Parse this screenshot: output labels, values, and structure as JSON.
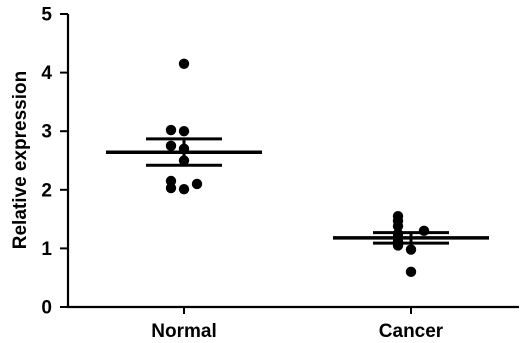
{
  "chart_data": {
    "type": "scatter",
    "ylabel": "Relative expression",
    "xlabel": "",
    "ylim": [
      0,
      5
    ],
    "yticks": [
      "0",
      "1",
      "2",
      "3",
      "4",
      "5"
    ],
    "categories": [
      "Normal",
      "Cancer"
    ],
    "groups": [
      {
        "category": "Normal",
        "values": [
          4.15,
          3.02,
          3.0,
          2.75,
          2.7,
          2.5,
          2.15,
          2.1,
          2.03,
          2.01
        ],
        "mean": 2.64,
        "sem_upper": 2.87,
        "sem_lower": 2.42
      },
      {
        "category": "Cancer",
        "values": [
          1.55,
          1.47,
          1.38,
          1.3,
          1.25,
          1.2,
          1.12,
          1.05,
          0.98,
          0.6
        ],
        "mean": 1.18,
        "sem_upper": 1.27,
        "sem_lower": 1.09
      }
    ],
    "grid": false
  }
}
